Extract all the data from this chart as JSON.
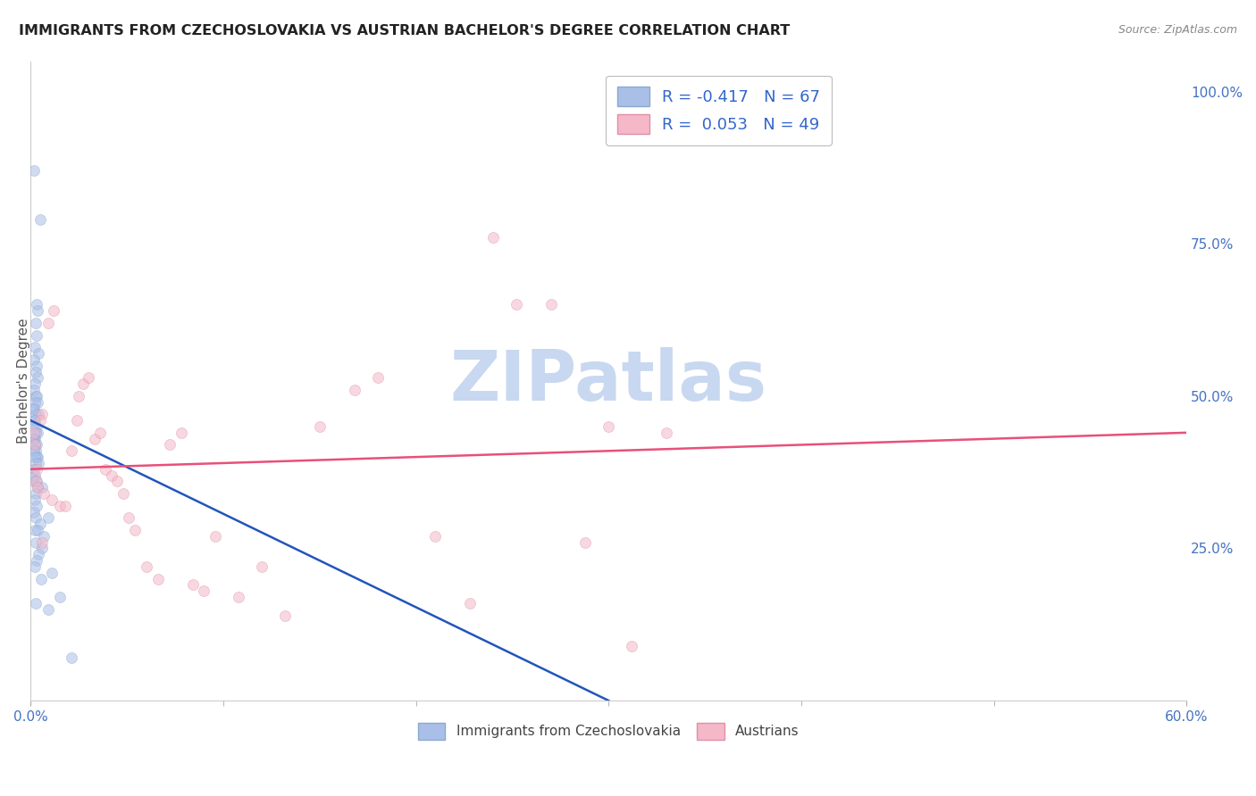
{
  "title": "IMMIGRANTS FROM CZECHOSLOVAKIA VS AUSTRIAN BACHELOR'S DEGREE CORRELATION CHART",
  "source": "Source: ZipAtlas.com",
  "ylabel": "Bachelor's Degree",
  "legend_entries": [
    {
      "label": "R = -0.417   N = 67",
      "color": "#aec6e8"
    },
    {
      "label": "R =  0.053   N = 49",
      "color": "#f4b8c8"
    }
  ],
  "legend_bottom": [
    "Immigrants from Czechoslovakia",
    "Austrians"
  ],
  "blue_scatter": [
    [
      0.15,
      87
    ],
    [
      0.5,
      79
    ],
    [
      0.3,
      65
    ],
    [
      0.35,
      64
    ],
    [
      0.25,
      62
    ],
    [
      0.3,
      60
    ],
    [
      0.2,
      58
    ],
    [
      0.4,
      57
    ],
    [
      0.15,
      56
    ],
    [
      0.3,
      55
    ],
    [
      0.25,
      54
    ],
    [
      0.35,
      53
    ],
    [
      0.2,
      52
    ],
    [
      0.15,
      51
    ],
    [
      0.25,
      50
    ],
    [
      0.3,
      50
    ],
    [
      0.35,
      49
    ],
    [
      0.2,
      49
    ],
    [
      0.15,
      48
    ],
    [
      0.1,
      48
    ],
    [
      0.25,
      47
    ],
    [
      0.4,
      47
    ],
    [
      0.2,
      46
    ],
    [
      0.15,
      46
    ],
    [
      0.3,
      45
    ],
    [
      0.1,
      45
    ],
    [
      0.35,
      44
    ],
    [
      0.25,
      44
    ],
    [
      0.2,
      43
    ],
    [
      0.15,
      43
    ],
    [
      0.1,
      43
    ],
    [
      0.3,
      42
    ],
    [
      0.2,
      42
    ],
    [
      0.25,
      41
    ],
    [
      0.15,
      41
    ],
    [
      0.35,
      40
    ],
    [
      0.3,
      40
    ],
    [
      0.2,
      40
    ],
    [
      0.4,
      39
    ],
    [
      0.25,
      39
    ],
    [
      0.15,
      38
    ],
    [
      0.2,
      37
    ],
    [
      0.3,
      36
    ],
    [
      0.1,
      36
    ],
    [
      0.6,
      35
    ],
    [
      0.35,
      35
    ],
    [
      0.25,
      34
    ],
    [
      0.2,
      33
    ],
    [
      0.3,
      32
    ],
    [
      0.15,
      31
    ],
    [
      0.25,
      30
    ],
    [
      0.9,
      30
    ],
    [
      0.5,
      29
    ],
    [
      0.2,
      28
    ],
    [
      0.35,
      28
    ],
    [
      0.7,
      27
    ],
    [
      0.25,
      26
    ],
    [
      0.6,
      25
    ],
    [
      0.4,
      24
    ],
    [
      0.3,
      23
    ],
    [
      0.2,
      22
    ],
    [
      1.1,
      21
    ],
    [
      0.55,
      20
    ],
    [
      1.5,
      17
    ],
    [
      2.1,
      7
    ],
    [
      0.25,
      16
    ],
    [
      0.9,
      15
    ]
  ],
  "pink_scatter": [
    [
      0.15,
      44
    ],
    [
      0.2,
      42
    ],
    [
      0.3,
      38
    ],
    [
      0.25,
      36
    ],
    [
      0.9,
      62
    ],
    [
      1.2,
      64
    ],
    [
      0.6,
      47
    ],
    [
      0.5,
      46
    ],
    [
      0.35,
      35
    ],
    [
      0.7,
      34
    ],
    [
      1.1,
      33
    ],
    [
      1.5,
      32
    ],
    [
      1.8,
      32
    ],
    [
      2.1,
      41
    ],
    [
      2.4,
      46
    ],
    [
      2.5,
      50
    ],
    [
      2.7,
      52
    ],
    [
      3.0,
      53
    ],
    [
      3.3,
      43
    ],
    [
      3.6,
      44
    ],
    [
      3.9,
      38
    ],
    [
      4.2,
      37
    ],
    [
      4.5,
      36
    ],
    [
      4.8,
      34
    ],
    [
      5.1,
      30
    ],
    [
      5.4,
      28
    ],
    [
      6.0,
      22
    ],
    [
      6.6,
      20
    ],
    [
      7.2,
      42
    ],
    [
      7.8,
      44
    ],
    [
      8.4,
      19
    ],
    [
      9.0,
      18
    ],
    [
      9.6,
      27
    ],
    [
      10.8,
      17
    ],
    [
      12.0,
      22
    ],
    [
      13.2,
      14
    ],
    [
      15.0,
      45
    ],
    [
      16.8,
      51
    ],
    [
      18.0,
      53
    ],
    [
      21.0,
      27
    ],
    [
      22.8,
      16
    ],
    [
      24.0,
      76
    ],
    [
      25.2,
      65
    ],
    [
      27.0,
      65
    ],
    [
      28.8,
      26
    ],
    [
      30.0,
      45
    ],
    [
      31.2,
      9
    ],
    [
      33.0,
      44
    ],
    [
      0.6,
      26
    ]
  ],
  "blue_line": {
    "x0": 0.0,
    "y0": 46,
    "x1": 30.0,
    "y1": 0
  },
  "pink_line": {
    "x0": 0.0,
    "y0": 38,
    "x1": 60.0,
    "y1": 44
  },
  "xlim": [
    0,
    60
  ],
  "ylim": [
    0,
    105
  ],
  "xtick_show": [
    0,
    60
  ],
  "xtick_labels": [
    "0.0%",
    "60.0%"
  ],
  "right_ytick_vals": [
    0,
    25,
    50,
    75,
    100
  ],
  "right_ytick_labels": [
    "",
    "25.0%",
    "50.0%",
    "75.0%",
    "100.0%"
  ],
  "background_color": "#ffffff",
  "grid_color": "#dddddd",
  "watermark": "ZIPatlas",
  "watermark_color": "#c8d8f0",
  "dot_size": 75,
  "dot_alpha": 0.55,
  "blue_dot_color": "#aabfe8",
  "blue_dot_edge": "#8aaad0",
  "pink_dot_color": "#f4b8c8",
  "pink_dot_edge": "#e090a8",
  "blue_line_color": "#2255bb",
  "pink_line_color": "#e8507a",
  "tick_color": "#4472c4",
  "ylabel_color": "#555555",
  "title_color": "#222222",
  "source_color": "#888888"
}
